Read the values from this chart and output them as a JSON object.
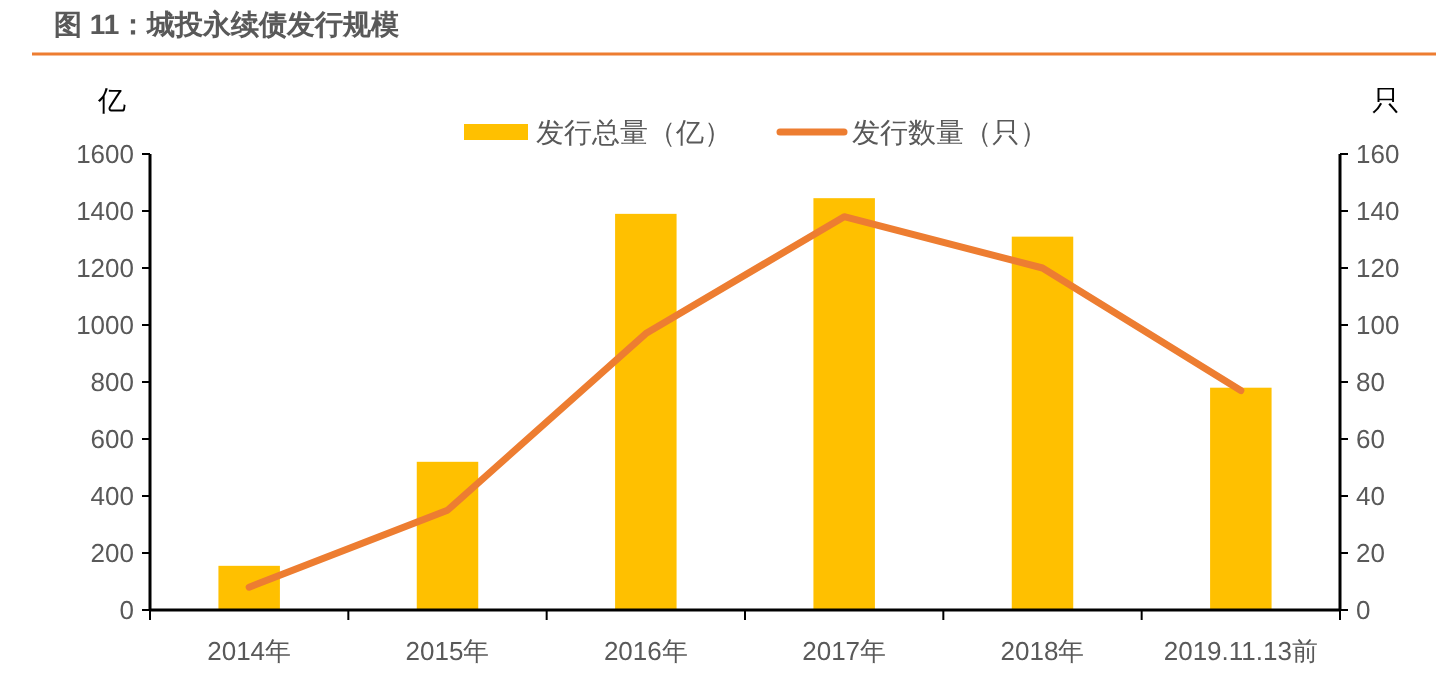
{
  "chart_data": {
    "type": "bar",
    "title": "图 11：城投永续债发行规模",
    "ylabel": "亿",
    "y2label": "只",
    "categories": [
      "2014年",
      "2015年",
      "2016年",
      "2017年",
      "2018年",
      "2019.11.13前"
    ],
    "series": [
      {
        "name": "发行总量（亿）",
        "color": "#ffc000",
        "values": [
          155,
          520,
          1390,
          1445,
          1310,
          780
        ]
      },
      {
        "name": "发行数量（只）",
        "type": "line",
        "axis": "y2",
        "color": "#ed7d31",
        "values": [
          8,
          35,
          97,
          138,
          120,
          77
        ]
      }
    ],
    "ylim": [
      0,
      1600
    ],
    "yticks": [
      0,
      200,
      400,
      600,
      800,
      1000,
      1200,
      1400,
      1600
    ],
    "y2lim": [
      0,
      160
    ],
    "y2ticks": [
      0,
      20,
      40,
      60,
      80,
      100,
      120,
      140,
      160
    ],
    "legend": "top",
    "grid": false,
    "line_style": "solid",
    "marker": "none"
  }
}
